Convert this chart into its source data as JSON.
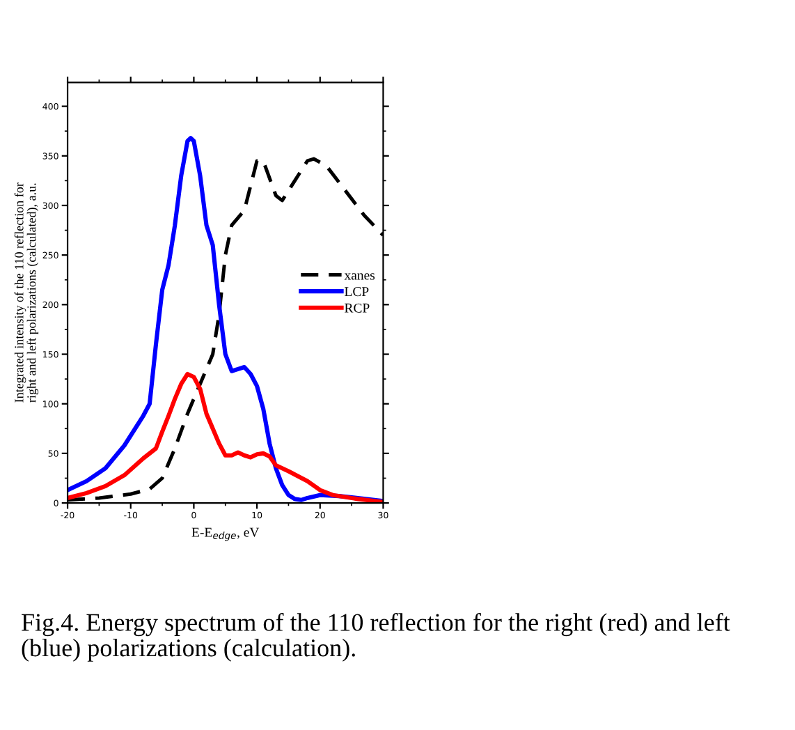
{
  "chart_data": {
    "type": "line",
    "xlabel": "E-E$_{edge}$, eV",
    "ylabel": "Integrated intensity of the 110 reflection for\nright and left polarizations (calculated), a.u.",
    "xlim": [
      -20,
      30
    ],
    "xticks": [
      -20,
      -10,
      0,
      10,
      20,
      30
    ],
    "ylim": [
      0,
      424
    ],
    "yticks": [
      0,
      50,
      100,
      150,
      200,
      250,
      300,
      350,
      400
    ],
    "legend": "center right",
    "grid": false,
    "annotations": [
      "Fig.4. Energy spectrum of the 110 reflection for the right (red) and left (blue) polarizations (calculation)."
    ],
    "series": [
      {
        "name": "xanes",
        "color": "#000000",
        "line_style": "dashed",
        "x": [
          -20,
          -15,
          -10,
          -7,
          -5,
          -3,
          -1,
          0,
          1,
          3,
          4,
          5,
          6,
          8,
          10,
          11,
          13,
          14,
          16,
          18,
          19,
          21,
          24,
          27,
          30
        ],
        "values": [
          3,
          5,
          9,
          14,
          25,
          55,
          90,
          105,
          120,
          150,
          190,
          250,
          280,
          295,
          345,
          345,
          310,
          305,
          325,
          345,
          347,
          340,
          315,
          290,
          270
        ]
      },
      {
        "name": "LCP",
        "color": "#0000ff",
        "line_style": "solid",
        "x": [
          -20,
          -17,
          -14,
          -11,
          -8,
          -7,
          -6,
          -5,
          -4,
          -3,
          -2,
          -1,
          -0.5,
          0,
          1,
          2,
          3,
          4,
          5,
          6,
          7,
          8,
          9,
          10,
          11,
          12,
          13,
          14,
          15,
          16,
          17,
          18,
          20,
          23,
          26,
          30
        ],
        "values": [
          13,
          22,
          35,
          58,
          88,
          100,
          160,
          215,
          240,
          280,
          330,
          365,
          368,
          365,
          330,
          280,
          260,
          200,
          150,
          133,
          135,
          137,
          130,
          118,
          95,
          60,
          35,
          18,
          8,
          4,
          3,
          5,
          8,
          7,
          5,
          2
        ]
      },
      {
        "name": "RCP",
        "color": "#ff0000",
        "line_style": "solid",
        "x": [
          -20,
          -17,
          -14,
          -11,
          -8,
          -6,
          -5,
          -4,
          -3,
          -2,
          -1,
          0,
          1,
          2,
          3,
          4,
          5,
          6,
          7,
          8,
          9,
          10,
          11,
          12,
          13,
          15,
          18,
          20,
          22,
          26,
          30
        ],
        "values": [
          5,
          10,
          17,
          28,
          45,
          55,
          72,
          88,
          105,
          120,
          130,
          127,
          115,
          90,
          75,
          60,
          48,
          48,
          51,
          48,
          46,
          49,
          50,
          47,
          38,
          32,
          22,
          13,
          8,
          4,
          1
        ]
      }
    ]
  }
}
